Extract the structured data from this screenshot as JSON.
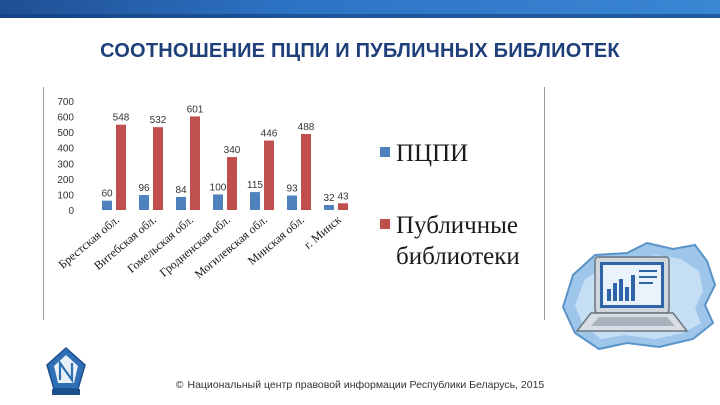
{
  "title": "СООТНОШЕНИЕ ПЦПИ И ПУБЛИЧНЫХ БИБЛИОТЕК",
  "footer": {
    "copyright_symbol": "©",
    "text": "Национальный центр правовой информации Республики Беларусь, 2015"
  },
  "legend": {
    "series1_line1": "ПЦПИ",
    "series2_line1": "Публичные",
    "series2_line2": "библиотеки"
  },
  "colors": {
    "series1": "#4f81bd",
    "series2": "#c0504d",
    "title": "#1f3f7a",
    "topbar": "#2d73c4"
  },
  "icons": {
    "logo": "ncpi-logo-icon",
    "illustration": "laptop-on-map-icon"
  },
  "chart_data": {
    "type": "bar",
    "categories": [
      "Брестская обл.",
      "Витебская обл.",
      "Гомельская обл.",
      "Гродненская обл.",
      "Могилевская обл.",
      "Минская обл.",
      "г. Минск"
    ],
    "series": [
      {
        "name": "ПЦПИ",
        "values": [
          60,
          96,
          84,
          100,
          115,
          93,
          32
        ]
      },
      {
        "name": "Публичные библиотеки",
        "values": [
          548,
          532,
          601,
          340,
          446,
          488,
          43
        ]
      }
    ],
    "ylim": [
      0,
      700
    ],
    "yticks": [
      "700",
      "600",
      "500",
      "400",
      "300",
      "200",
      "100",
      "0"
    ],
    "legend_position": "right",
    "grid": false
  }
}
